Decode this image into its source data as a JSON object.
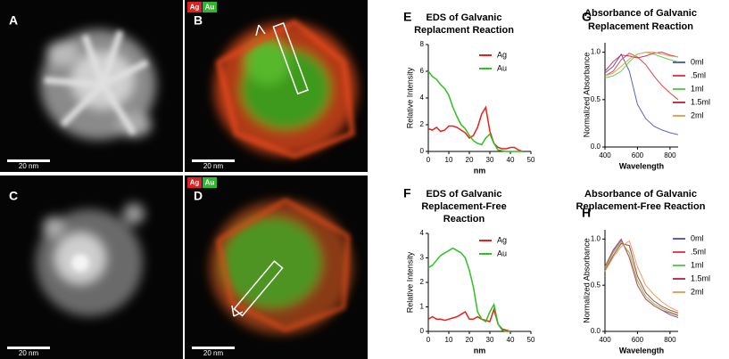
{
  "panels": [
    {
      "label": "A",
      "scale": "20 nm"
    },
    {
      "label": "B",
      "scale": "20 nm",
      "badges": [
        "Ag",
        "Au"
      ]
    },
    {
      "label": "C",
      "scale": "20 nm"
    },
    {
      "label": "D",
      "scale": "20 nm",
      "badges": [
        "Ag",
        "Au"
      ]
    }
  ],
  "chart_data": [
    {
      "type": "line",
      "panel": "E",
      "title": [
        "EDS of Galvanic",
        "Replacment Reaction"
      ],
      "x_label": "nm",
      "y_label": "Relative Intensity",
      "x": [
        0,
        2,
        4,
        6,
        8,
        10,
        12,
        14,
        16,
        18,
        20,
        22,
        24,
        26,
        28,
        30,
        32,
        34,
        36,
        38,
        40,
        42,
        44,
        46
      ],
      "xlim": [
        0,
        50
      ],
      "xticks": [
        0,
        10,
        20,
        30,
        40,
        50
      ],
      "ylim": [
        0,
        8
      ],
      "yticks": [
        0,
        2,
        4,
        6,
        8
      ],
      "series": [
        {
          "name": "Ag",
          "color": "#e8201c",
          "values": [
            1.7,
            1.6,
            1.8,
            1.5,
            1.6,
            1.9,
            1.9,
            1.8,
            1.6,
            1.4,
            1.0,
            1.2,
            1.8,
            2.8,
            3.3,
            1.5,
            0.6,
            0.3,
            0.2,
            0.2,
            0.3,
            0.3,
            0.1,
            0
          ]
        },
        {
          "name": "Au",
          "color": "#2fc021",
          "values": [
            6.0,
            5.6,
            5.4,
            5.0,
            4.7,
            4.2,
            3.3,
            2.6,
            2.0,
            1.7,
            1.2,
            0.8,
            0.6,
            0.5,
            1.0,
            1.3,
            0.6,
            0.1,
            0.05,
            0,
            0,
            0,
            0,
            0
          ]
        }
      ]
    },
    {
      "type": "line",
      "panel": "F",
      "title": [
        "EDS of Galvanic",
        "Replacement-Free",
        "Reaction"
      ],
      "x_label": "nm",
      "y_label": "Relative Intensity",
      "x": [
        0,
        2,
        4,
        6,
        8,
        10,
        12,
        14,
        16,
        18,
        20,
        22,
        24,
        26,
        28,
        30,
        32,
        34,
        36,
        38,
        40
      ],
      "xlim": [
        0,
        50
      ],
      "xticks": [
        0,
        10,
        20,
        30,
        40,
        50
      ],
      "ylim": [
        0,
        4
      ],
      "yticks": [
        0,
        1,
        2,
        3,
        4
      ],
      "series": [
        {
          "name": "Ag",
          "color": "#e8201c",
          "values": [
            0.5,
            0.6,
            0.5,
            0.5,
            0.45,
            0.5,
            0.55,
            0.6,
            0.7,
            0.8,
            0.5,
            0.5,
            0.6,
            0.5,
            0.45,
            0.4,
            0.9,
            0.3,
            0.1,
            0.05,
            0
          ]
        },
        {
          "name": "Au",
          "color": "#2fc021",
          "values": [
            2.6,
            2.7,
            2.9,
            3.1,
            3.2,
            3.3,
            3.4,
            3.3,
            3.2,
            3.0,
            2.5,
            1.8,
            0.8,
            0.5,
            0.4,
            0.8,
            1.1,
            0.3,
            0.05,
            0,
            0
          ]
        }
      ]
    },
    {
      "type": "line",
      "panel": "G",
      "title": [
        "Absorbance of Galvanic",
        "Replacement Reaction"
      ],
      "x_label": "Wavelength",
      "y_label": "Normalized Absorbance",
      "x": [
        400,
        450,
        500,
        550,
        600,
        650,
        700,
        750,
        800,
        850
      ],
      "xlim": [
        400,
        850
      ],
      "xticks": [
        400,
        600,
        800
      ],
      "ylim": [
        0,
        1.1
      ],
      "yticks": [
        {
          "value": 0,
          "label": "0.0"
        },
        {
          "value": 0.5,
          "label": "0.5"
        },
        {
          "value": 1,
          "label": "1.0"
        }
      ],
      "series": [
        {
          "name": "0ml",
          "color": "#5b5bd6",
          "values": [
            0.78,
            0.85,
            0.98,
            0.8,
            0.45,
            0.3,
            0.22,
            0.18,
            0.15,
            0.13
          ]
        },
        {
          "name": ".5ml",
          "color": "#e0474c",
          "values": [
            0.75,
            0.8,
            0.92,
            0.99,
            0.95,
            0.87,
            0.75,
            0.65,
            0.57,
            0.5
          ]
        },
        {
          "name": "1ml",
          "color": "#5fcf4f",
          "values": [
            0.73,
            0.75,
            0.8,
            0.9,
            0.98,
            1.0,
            0.98,
            0.95,
            0.92,
            0.9
          ]
        },
        {
          "name": "1.5ml",
          "color": "#c2364b",
          "values": [
            0.8,
            0.9,
            0.97,
            0.96,
            0.94,
            0.96,
            0.99,
            1.0,
            0.97,
            0.95
          ]
        },
        {
          "name": "2ml",
          "color": "#e8a25a",
          "values": [
            0.75,
            0.78,
            0.85,
            0.93,
            0.98,
            1.0,
            1.0,
            0.98,
            0.96,
            0.95
          ]
        }
      ]
    },
    {
      "type": "line",
      "panel": "H",
      "title": [
        "Absorbance of Galvanic",
        "Replacement-Free Reaction"
      ],
      "x_label": "Wavelength",
      "y_label": "Normalized Absorbance",
      "x": [
        400,
        450,
        500,
        550,
        600,
        650,
        700,
        750,
        800,
        850
      ],
      "xlim": [
        400,
        850
      ],
      "xticks": [
        400,
        600,
        800
      ],
      "ylim": [
        0,
        1.1
      ],
      "yticks": [
        {
          "value": 0,
          "label": "0.0"
        },
        {
          "value": 0.5,
          "label": "0.5"
        },
        {
          "value": 1,
          "label": "1.0"
        }
      ],
      "series": [
        {
          "name": "0ml",
          "color": "#5b5bd6",
          "values": [
            0.7,
            0.88,
            1.0,
            0.8,
            0.5,
            0.35,
            0.28,
            0.23,
            0.18,
            0.15
          ]
        },
        {
          "name": ".5ml",
          "color": "#e0474c",
          "values": [
            0.7,
            0.87,
            0.99,
            0.8,
            0.5,
            0.35,
            0.28,
            0.23,
            0.2,
            0.17
          ]
        },
        {
          "name": "1ml",
          "color": "#5fcf4f",
          "values": [
            0.68,
            0.85,
            0.97,
            0.85,
            0.55,
            0.38,
            0.3,
            0.25,
            0.21,
            0.18
          ]
        },
        {
          "name": "1.5ml",
          "color": "#c2364b",
          "values": [
            0.66,
            0.82,
            0.95,
            0.93,
            0.6,
            0.42,
            0.33,
            0.27,
            0.23,
            0.2
          ]
        },
        {
          "name": "2ml",
          "color": "#e8a25a",
          "values": [
            0.65,
            0.8,
            0.92,
            0.98,
            0.7,
            0.5,
            0.4,
            0.32,
            0.26,
            0.22
          ]
        }
      ]
    }
  ]
}
